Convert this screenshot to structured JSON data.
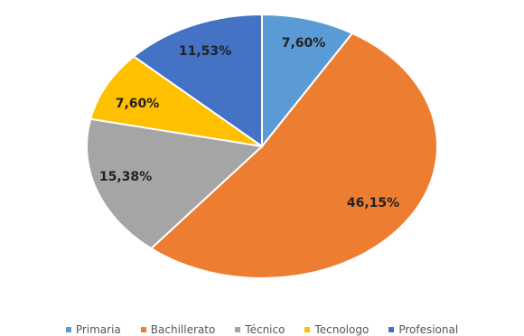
{
  "chart_data": {
    "type": "pie",
    "title": "",
    "categories": [
      "Primaria",
      "Bachillerato",
      "Técnico",
      "Tecnologo",
      "Profesional"
    ],
    "values": [
      7.6,
      46.15,
      15.38,
      7.6,
      11.53
    ],
    "labels": [
      "7,60%",
      "46,15%",
      "15,38%",
      "7,60%",
      "11,53%"
    ],
    "colors": [
      "#5B9BD5",
      "#ED7D31",
      "#A5A5A5",
      "#FFC000",
      "#4472C4"
    ],
    "legend_position": "bottom"
  }
}
